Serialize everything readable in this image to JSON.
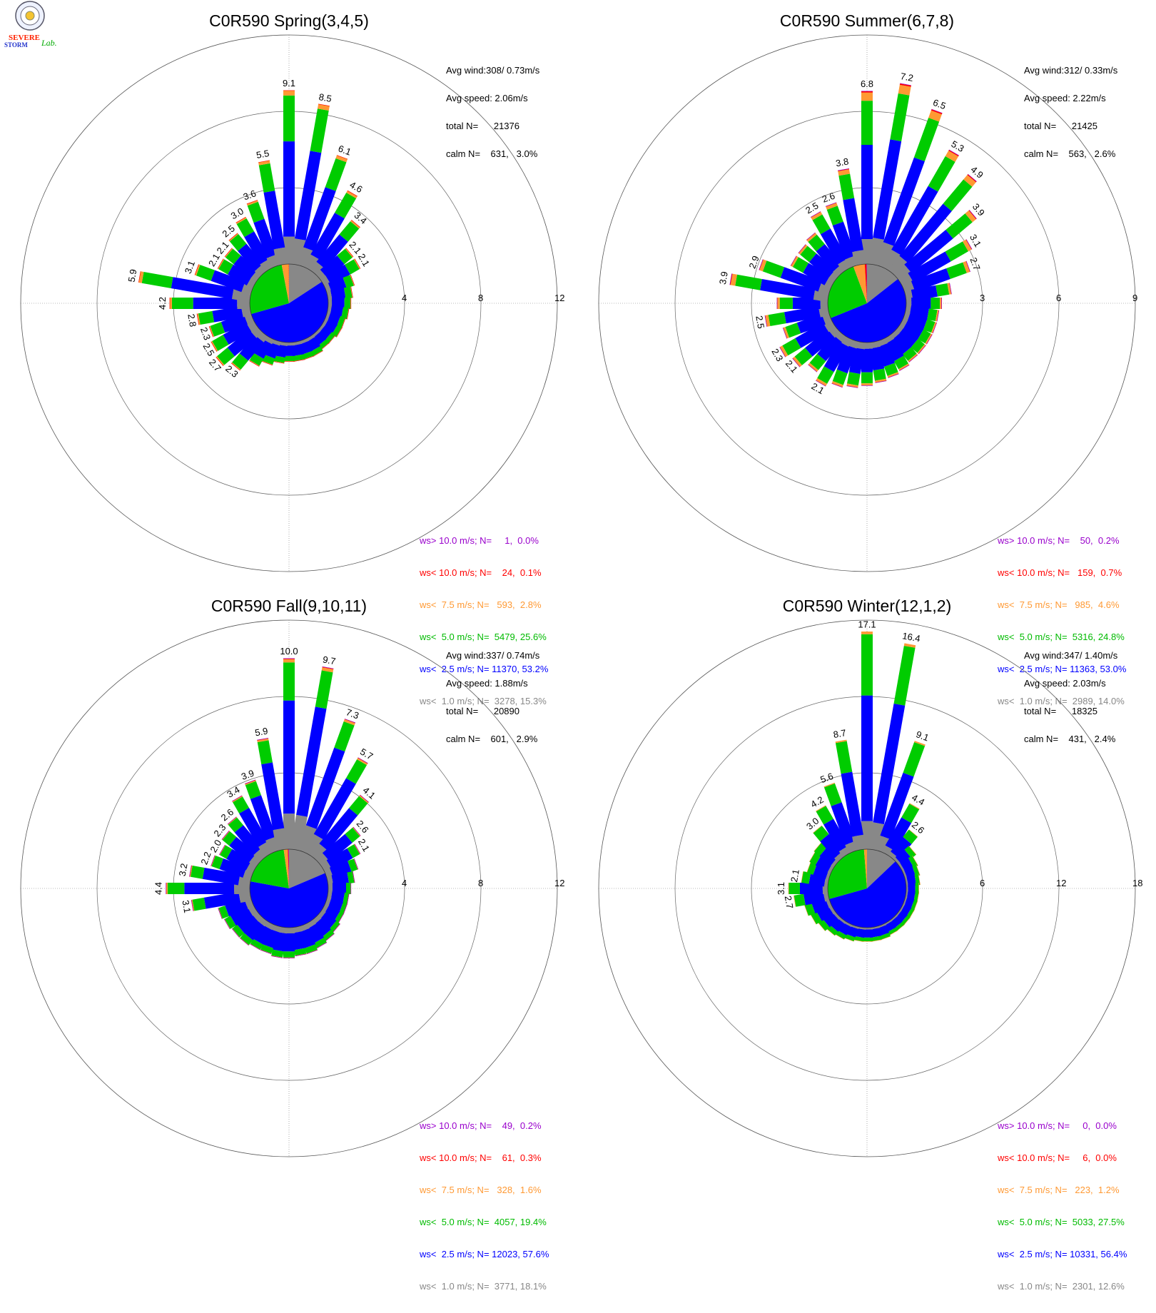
{
  "colors": {
    "gt10": "#9900cc",
    "lt10": "#ff0000",
    "lt7_5": "#ff9933",
    "lt5": "#00cc00",
    "lt2_5": "#0000ff",
    "lt1": "#888888"
  },
  "logo": {
    "line1": "SEVERE",
    "line2": "STORM",
    "line3": "Lab."
  },
  "chart_data": [
    {
      "type": "windrose",
      "title": "C0R590 Spring(3,4,5)",
      "rings": [
        4,
        8,
        12
      ],
      "stats": {
        "avg_wind": "Avg wind:308/ 0.73m/s",
        "avg_speed": "Avg speed: 2.06m/s",
        "total": "total N=      21376",
        "calm": "calm N=    631,   3.0%"
      },
      "pie": {
        "lt1": 15.3,
        "lt2_5": 53.2,
        "lt5": 25.6,
        "lt7_5": 2.8,
        "lt10": 0.1,
        "gt10": 0.0
      },
      "petals": [
        {
          "dir": 0,
          "total": 9.1,
          "label": "9.1"
        },
        {
          "dir": 10,
          "total": 8.5,
          "label": "8.5"
        },
        {
          "dir": 20,
          "total": 6.1,
          "label": "6.1"
        },
        {
          "dir": 30,
          "total": 4.6,
          "label": "4.6"
        },
        {
          "dir": 40,
          "total": 3.4,
          "label": "3.4"
        },
        {
          "dir": 50,
          "total": 2.1,
          "label": "2.1"
        },
        {
          "dir": 60,
          "total": 2.1,
          "label": "2.1"
        },
        {
          "dir": 70,
          "total": 1.5
        },
        {
          "dir": 80,
          "total": 1.3
        },
        {
          "dir": 90,
          "total": 1.2
        },
        {
          "dir": 100,
          "total": 1.1
        },
        {
          "dir": 110,
          "total": 1.0
        },
        {
          "dir": 120,
          "total": 1.0
        },
        {
          "dir": 130,
          "total": 0.9
        },
        {
          "dir": 140,
          "total": 0.9
        },
        {
          "dir": 150,
          "total": 1.0
        },
        {
          "dir": 160,
          "total": 1.0
        },
        {
          "dir": 170,
          "total": 1.0
        },
        {
          "dir": 180,
          "total": 1.0
        },
        {
          "dir": 190,
          "total": 1.1
        },
        {
          "dir": 200,
          "total": 1.3
        },
        {
          "dir": 210,
          "total": 1.6
        },
        {
          "dir": 220,
          "total": 2.3,
          "label": "2.3"
        },
        {
          "dir": 230,
          "total": 2.7,
          "label": "2.7"
        },
        {
          "dir": 240,
          "total": 2.5,
          "label": "2.5"
        },
        {
          "dir": 250,
          "total": 2.3,
          "label": "2.3"
        },
        {
          "dir": 260,
          "total": 2.8,
          "label": "2.8"
        },
        {
          "dir": 270,
          "total": 4.2,
          "label": "4.2"
        },
        {
          "dir": 280,
          "total": 5.9,
          "label": "5.9"
        },
        {
          "dir": 290,
          "total": 3.1,
          "label": "3.1"
        },
        {
          "dir": 300,
          "total": 2.1,
          "label": "2.1"
        },
        {
          "dir": 310,
          "total": 2.1,
          "label": "2.1"
        },
        {
          "dir": 320,
          "total": 2.5,
          "label": "2.5"
        },
        {
          "dir": 330,
          "total": 3.0,
          "label": "3.0"
        },
        {
          "dir": 340,
          "total": 3.6,
          "label": "3.6"
        },
        {
          "dir": 350,
          "total": 5.5,
          "label": "5.5"
        }
      ],
      "legend": [
        {
          "key": "gt10",
          "text": "ws> 10.0 m/s; N=     1,  0.0%"
        },
        {
          "key": "lt10",
          "text": "ws< 10.0 m/s; N=    24,  0.1%"
        },
        {
          "key": "lt7_5",
          "text": "ws<  7.5 m/s; N=   593,  2.8%"
        },
        {
          "key": "lt5",
          "text": "ws<  5.0 m/s; N=  5479, 25.6%"
        },
        {
          "key": "lt2_5",
          "text": "ws<  2.5 m/s; N= 11370, 53.2%"
        },
        {
          "key": "lt1",
          "text": "ws<  1.0 m/s; N=  3278, 15.3%"
        }
      ]
    },
    {
      "type": "windrose",
      "title": "C0R590 Summer(6,7,8)",
      "rings": [
        3,
        6,
        9
      ],
      "stats": {
        "avg_wind": "Avg wind:312/ 0.33m/s",
        "avg_speed": "Avg speed: 2.22m/s",
        "total": "total N=      21425",
        "calm": "calm N=    563,   2.6%"
      },
      "pie": {
        "lt1": 14.0,
        "lt2_5": 53.0,
        "lt5": 24.8,
        "lt7_5": 4.6,
        "lt10": 0.7,
        "gt10": 0.2
      },
      "petals": [
        {
          "dir": 0,
          "total": 6.8,
          "label": "6.8"
        },
        {
          "dir": 10,
          "total": 7.2,
          "label": "7.2"
        },
        {
          "dir": 20,
          "total": 6.5,
          "label": "6.5"
        },
        {
          "dir": 30,
          "total": 5.3,
          "label": "5.3"
        },
        {
          "dir": 40,
          "total": 4.9,
          "label": "4.9"
        },
        {
          "dir": 50,
          "total": 3.9,
          "label": "3.9"
        },
        {
          "dir": 60,
          "total": 3.1,
          "label": "3.1"
        },
        {
          "dir": 70,
          "total": 2.7,
          "label": "2.7"
        },
        {
          "dir": 80,
          "total": 1.8
        },
        {
          "dir": 90,
          "total": 1.4
        },
        {
          "dir": 100,
          "total": 1.3
        },
        {
          "dir": 110,
          "total": 1.3
        },
        {
          "dir": 120,
          "total": 1.3
        },
        {
          "dir": 130,
          "total": 1.3
        },
        {
          "dir": 140,
          "total": 1.3
        },
        {
          "dir": 150,
          "total": 1.4
        },
        {
          "dir": 160,
          "total": 1.5
        },
        {
          "dir": 170,
          "total": 1.6
        },
        {
          "dir": 180,
          "total": 1.7
        },
        {
          "dir": 190,
          "total": 1.8
        },
        {
          "dir": 200,
          "total": 1.9
        },
        {
          "dir": 210,
          "total": 2.1,
          "label": "2.1"
        },
        {
          "dir": 220,
          "total": 1.8
        },
        {
          "dir": 230,
          "total": 2.1,
          "label": "2.1"
        },
        {
          "dir": 240,
          "total": 2.3,
          "label": "2.3"
        },
        {
          "dir": 250,
          "total": 1.9
        },
        {
          "dir": 260,
          "total": 2.5,
          "label": "2.5"
        },
        {
          "dir": 270,
          "total": 2.0
        },
        {
          "dir": 280,
          "total": 3.9,
          "label": "3.9"
        },
        {
          "dir": 290,
          "total": 2.9,
          "label": "2.9"
        },
        {
          "dir": 300,
          "total": 1.8
        },
        {
          "dir": 310,
          "total": 1.8
        },
        {
          "dir": 320,
          "total": 1.9
        },
        {
          "dir": 330,
          "total": 2.5,
          "label": "2.5"
        },
        {
          "dir": 340,
          "total": 2.6,
          "label": "2.6"
        },
        {
          "dir": 350,
          "total": 3.8,
          "label": "3.8"
        }
      ],
      "legend": [
        {
          "key": "gt10",
          "text": "ws> 10.0 m/s; N=    50,  0.2%"
        },
        {
          "key": "lt10",
          "text": "ws< 10.0 m/s; N=   159,  0.7%"
        },
        {
          "key": "lt7_5",
          "text": "ws<  7.5 m/s; N=   985,  4.6%"
        },
        {
          "key": "lt5",
          "text": "ws<  5.0 m/s; N=  5316, 24.8%"
        },
        {
          "key": "lt2_5",
          "text": "ws<  2.5 m/s; N= 11363, 53.0%"
        },
        {
          "key": "lt1",
          "text": "ws<  1.0 m/s; N=  2989, 14.0%"
        }
      ]
    },
    {
      "type": "windrose",
      "title": "C0R590 Fall(9,10,11)",
      "rings": [
        4,
        8,
        12
      ],
      "stats": {
        "avg_wind": "Avg wind:337/ 0.74m/s",
        "avg_speed": "Avg speed: 1.88m/s",
        "total": "total N=      20890",
        "calm": "calm N=    601,   2.9%"
      },
      "pie": {
        "lt1": 18.1,
        "lt2_5": 57.6,
        "lt5": 19.4,
        "lt7_5": 1.6,
        "lt10": 0.3,
        "gt10": 0.2
      },
      "petals": [
        {
          "dir": 0,
          "total": 10.0,
          "label": "10.0"
        },
        {
          "dir": 10,
          "total": 9.7,
          "label": "9.7"
        },
        {
          "dir": 20,
          "total": 7.3,
          "label": "7.3"
        },
        {
          "dir": 30,
          "total": 5.7,
          "label": "5.7"
        },
        {
          "dir": 40,
          "total": 4.1,
          "label": "4.1"
        },
        {
          "dir": 50,
          "total": 2.6,
          "label": "2.6"
        },
        {
          "dir": 60,
          "total": 2.1,
          "label": "2.1"
        },
        {
          "dir": 70,
          "total": 1.7
        },
        {
          "dir": 80,
          "total": 1.4
        },
        {
          "dir": 90,
          "total": 1.2
        },
        {
          "dir": 100,
          "total": 1.1
        },
        {
          "dir": 110,
          "total": 1.1
        },
        {
          "dir": 120,
          "total": 1.1
        },
        {
          "dir": 130,
          "total": 1.2
        },
        {
          "dir": 140,
          "total": 1.3
        },
        {
          "dir": 150,
          "total": 1.4
        },
        {
          "dir": 160,
          "total": 1.5
        },
        {
          "dir": 170,
          "total": 1.5
        },
        {
          "dir": 180,
          "total": 1.6
        },
        {
          "dir": 190,
          "total": 1.6
        },
        {
          "dir": 200,
          "total": 1.5
        },
        {
          "dir": 210,
          "total": 1.5
        },
        {
          "dir": 220,
          "total": 1.6
        },
        {
          "dir": 230,
          "total": 1.6
        },
        {
          "dir": 240,
          "total": 1.7
        },
        {
          "dir": 250,
          "total": 1.8
        },
        {
          "dir": 260,
          "total": 3.1,
          "label": "3.1"
        },
        {
          "dir": 270,
          "total": 4.4,
          "label": "4.4"
        },
        {
          "dir": 280,
          "total": 3.2,
          "label": "3.2"
        },
        {
          "dir": 290,
          "total": 2.2,
          "label": "2.2"
        },
        {
          "dir": 300,
          "total": 2.0,
          "label": "2.0"
        },
        {
          "dir": 310,
          "total": 2.3,
          "label": "2.3"
        },
        {
          "dir": 320,
          "total": 2.6,
          "label": "2.6"
        },
        {
          "dir": 330,
          "total": 3.4,
          "label": "3.4"
        },
        {
          "dir": 340,
          "total": 3.9,
          "label": "3.9"
        },
        {
          "dir": 350,
          "total": 5.9,
          "label": "5.9"
        }
      ],
      "legend": [
        {
          "key": "gt10",
          "text": "ws> 10.0 m/s; N=    49,  0.2%"
        },
        {
          "key": "lt10",
          "text": "ws< 10.0 m/s; N=    61,  0.3%"
        },
        {
          "key": "lt7_5",
          "text": "ws<  7.5 m/s; N=   328,  1.6%"
        },
        {
          "key": "lt5",
          "text": "ws<  5.0 m/s; N=  4057, 19.4%"
        },
        {
          "key": "lt2_5",
          "text": "ws<  2.5 m/s; N= 12023, 57.6%"
        },
        {
          "key": "lt1",
          "text": "ws<  1.0 m/s; N=  3771, 18.1%"
        }
      ]
    },
    {
      "type": "windrose",
      "title": "C0R590 Winter(12,1,2)",
      "rings": [
        6,
        12,
        18
      ],
      "stats": {
        "avg_wind": "Avg wind:347/ 1.40m/s",
        "avg_speed": "Avg speed: 2.03m/s",
        "total": "total N=      18325",
        "calm": "calm N=    431,   2.4%"
      },
      "pie": {
        "lt1": 12.6,
        "lt2_5": 56.4,
        "lt5": 27.5,
        "lt7_5": 1.2,
        "lt10": 0.0,
        "gt10": 0.0
      },
      "petals": [
        {
          "dir": 0,
          "total": 17.1,
          "label": "17.1"
        },
        {
          "dir": 10,
          "total": 16.4,
          "label": "16.4"
        },
        {
          "dir": 20,
          "total": 9.1,
          "label": "9.1"
        },
        {
          "dir": 30,
          "total": 4.4,
          "label": "4.4"
        },
        {
          "dir": 40,
          "total": 2.6,
          "label": "2.6"
        },
        {
          "dir": 50,
          "total": 1.6
        },
        {
          "dir": 60,
          "total": 1.3
        },
        {
          "dir": 70,
          "total": 1.2
        },
        {
          "dir": 80,
          "total": 1.1
        },
        {
          "dir": 90,
          "total": 1.0
        },
        {
          "dir": 100,
          "total": 1.0
        },
        {
          "dir": 110,
          "total": 1.0
        },
        {
          "dir": 120,
          "total": 1.0
        },
        {
          "dir": 130,
          "total": 1.0
        },
        {
          "dir": 140,
          "total": 1.0
        },
        {
          "dir": 150,
          "total": 1.0
        },
        {
          "dir": 160,
          "total": 1.1
        },
        {
          "dir": 170,
          "total": 1.1
        },
        {
          "dir": 180,
          "total": 1.1
        },
        {
          "dir": 190,
          "total": 1.1
        },
        {
          "dir": 200,
          "total": 1.2
        },
        {
          "dir": 210,
          "total": 1.3
        },
        {
          "dir": 220,
          "total": 1.4
        },
        {
          "dir": 230,
          "total": 1.6
        },
        {
          "dir": 240,
          "total": 1.8
        },
        {
          "dir": 250,
          "total": 2.0
        },
        {
          "dir": 260,
          "total": 2.7,
          "label": "2.7"
        },
        {
          "dir": 270,
          "total": 3.1,
          "label": "3.1"
        },
        {
          "dir": 280,
          "total": 2.1,
          "label": "2.1"
        },
        {
          "dir": 290,
          "total": 1.8
        },
        {
          "dir": 300,
          "total": 1.9
        },
        {
          "dir": 310,
          "total": 2.0
        },
        {
          "dir": 320,
          "total": 3.0,
          "label": "3.0"
        },
        {
          "dir": 330,
          "total": 4.2,
          "label": "4.2"
        },
        {
          "dir": 340,
          "total": 5.6,
          "label": "5.6"
        },
        {
          "dir": 350,
          "total": 8.7,
          "label": "8.7"
        }
      ],
      "legend": [
        {
          "key": "gt10",
          "text": "ws> 10.0 m/s; N=     0,  0.0%"
        },
        {
          "key": "lt10",
          "text": "ws< 10.0 m/s; N=     6,  0.0%"
        },
        {
          "key": "lt7_5",
          "text": "ws<  7.5 m/s; N=   223,  1.2%"
        },
        {
          "key": "lt5",
          "text": "ws<  5.0 m/s; N=  5033, 27.5%"
        },
        {
          "key": "lt2_5",
          "text": "ws<  2.5 m/s; N= 10331, 56.4%"
        },
        {
          "key": "lt1",
          "text": "ws<  1.0 m/s; N=  2301, 12.6%"
        }
      ]
    }
  ]
}
